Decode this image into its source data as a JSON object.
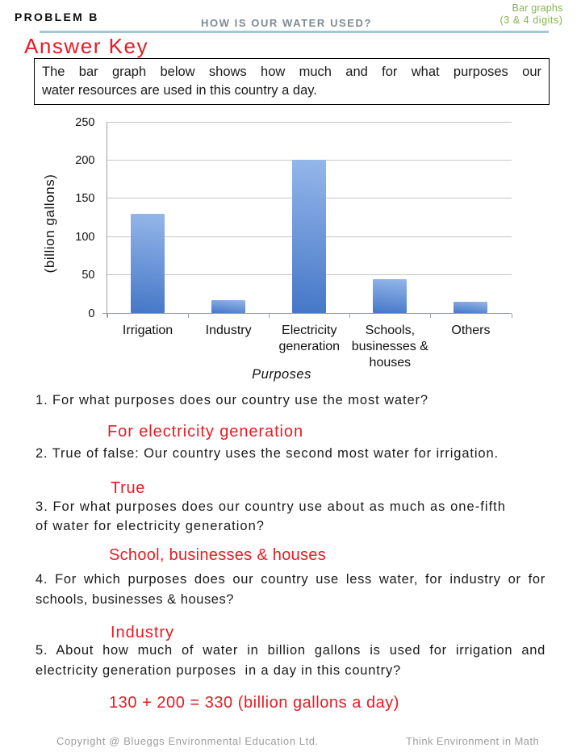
{
  "header": {
    "problem_label": "PROBLEM B",
    "worksheet_title": "HOW IS OUR WATER USED?",
    "topic_line1": "Bar graphs",
    "topic_line2": "(3 & 4 digits)"
  },
  "answer_key_title": "Answer Key",
  "intro": {
    "line1": "The bar graph below shows how much and for what purposes our",
    "line2": "water resources are used in this country a day."
  },
  "chart_data": {
    "type": "bar",
    "title": "",
    "categories": [
      "Irrigation",
      "Industry",
      "Electricity\ngeneration",
      "Schools,\nbusinesses &\nhouses",
      "Others"
    ],
    "values": [
      130,
      17,
      200,
      44,
      15
    ],
    "xlabel": "Purposes",
    "ylabel": "(billion gallons)",
    "ylim": [
      0,
      250
    ],
    "yticks": [
      0,
      50,
      100,
      150,
      200,
      250
    ],
    "grid": true,
    "legend": false,
    "bar_color_top": "#95b7ea",
    "bar_color_bottom": "#4577c7"
  },
  "questions": [
    {
      "lines": [
        "1. For what purposes does our country use the most water?"
      ],
      "answer": "For electricity generation"
    },
    {
      "lines": [
        "2. True of false: Our country uses the second most water for irrigation."
      ],
      "answer": "True"
    },
    {
      "lines": [
        "3. For what purposes does our country use about as much as one-fifth",
        "of water for electricity generation?"
      ],
      "answer": "School, businesses & houses"
    },
    {
      "lines": [
        "4. For which purposes does our country use less water, for industry or for",
        "schools, businesses & houses?"
      ],
      "answer": "Industry"
    },
    {
      "lines": [
        "5. About how much of water in billion gallons is used for irrigation and",
        "electricity generation purposes  in a day in this country?"
      ],
      "answer": "130 + 200 = 330 (billion gallons a day)"
    }
  ],
  "footer": {
    "copyright": "Copyright @ Blueggs Environmental Education Ltd.",
    "tagline": "Think Environment in Math"
  }
}
